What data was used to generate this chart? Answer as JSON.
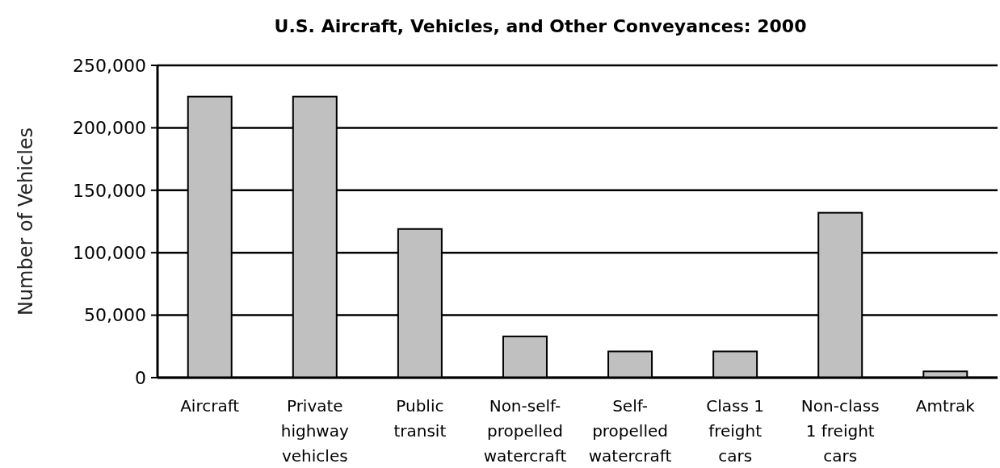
{
  "chart_data": {
    "type": "bar",
    "title": "U.S. Aircraft, Vehicles, and Other Conveyances: 2000",
    "ylabel": "Number of Vehicles",
    "categories": [
      "Aircraft",
      "Private\nhighway\nvehicles",
      "Public\ntransit",
      "Non-self-\npropelled\nwatercraft",
      "Self-\npropelled\nwatercraft",
      "Class 1\nfreight\ncars",
      "Non-class\n1 freight\ncars",
      "Amtrak"
    ],
    "values": [
      225000,
      225000,
      119000,
      33000,
      21000,
      21000,
      132000,
      5000
    ],
    "color": "#c0c0c0",
    "ylim": [
      0,
      250000
    ],
    "yticks": [
      {
        "value": 0,
        "label": "0"
      },
      {
        "value": 50000,
        "label": "50,000"
      },
      {
        "value": 100000,
        "label": "100,000"
      },
      {
        "value": 150000,
        "label": "150,000"
      },
      {
        "value": 200000,
        "label": "200,000"
      },
      {
        "value": 250000,
        "label": "250,000"
      }
    ],
    "grid": "y"
  }
}
